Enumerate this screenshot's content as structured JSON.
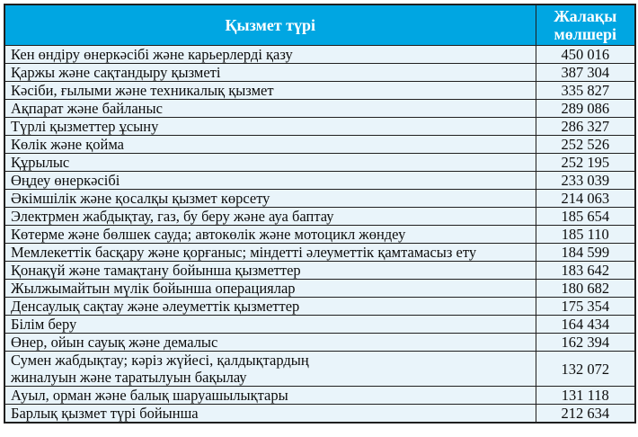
{
  "colors": {
    "header_bg": "#00A6E2",
    "header_text": "#FFFFFF",
    "row_bg": "#E9F4FA",
    "border": "#1F1F1F"
  },
  "table": {
    "headers": {
      "activity": "Қызмет түрі",
      "salary": "Жалақы мөлшері"
    },
    "rows": [
      {
        "activity": "Кен өндіру өнеркәсібі және карьерлерді қазу",
        "salary": "450 016"
      },
      {
        "activity": "Қаржы және сақтандыру қызметі",
        "salary": "387 304"
      },
      {
        "activity": "Кәсіби, ғылыми және техникалық қызмет",
        "salary": "335 827"
      },
      {
        "activity": "Ақпарат және байланыс",
        "salary": "289 086"
      },
      {
        "activity": "Түрлі қызметтер ұсыну",
        "salary": "286 327"
      },
      {
        "activity": "Көлік және қойма",
        "salary": "252 526"
      },
      {
        "activity": "Құрылыс",
        "salary": "252 195"
      },
      {
        "activity": "Өңдеу өнеркәсібі",
        "salary": "233 039"
      },
      {
        "activity": "Әкімшілік және қосалқы қызмет көрсету",
        "salary": "214 063"
      },
      {
        "activity": "Электрмен жабдықтау, газ, бу беру және ауа баптау",
        "salary": "185 654"
      },
      {
        "activity": "Көтерме және бөлшек сауда; автокөлік және мотоцикл жөндеу",
        "salary": "185 110"
      },
      {
        "activity": "Мемлекеттік басқару және қорғаныс; міндетті әлеуметтік қамтамасыз ету",
        "salary": "184 599"
      },
      {
        "activity": "Қонақүй және тамақтану бойынша қызметтер",
        "salary": "183 642"
      },
      {
        "activity": "Жылжымайтын мүлік бойынша операциялар",
        "salary": "180 682"
      },
      {
        "activity": "Денсаулық сақтау және әлеуметтік қызметтер",
        "salary": "175 354"
      },
      {
        "activity": "Білім беру",
        "salary": "164 434"
      },
      {
        "activity": "Өнер, ойын сауық және демалыс",
        "salary": "162 394"
      },
      {
        "activity": "Сумен жабдықтау; кәріз жүйесі, қалдықтардың\nжиналуын және таратылуын бақылау",
        "salary": "132 072"
      },
      {
        "activity": "Ауыл, орман және балық шаруашылықтары",
        "salary": "131 118"
      },
      {
        "activity": "Барлық қызмет түрі бойынша",
        "salary": "212 634"
      }
    ]
  }
}
